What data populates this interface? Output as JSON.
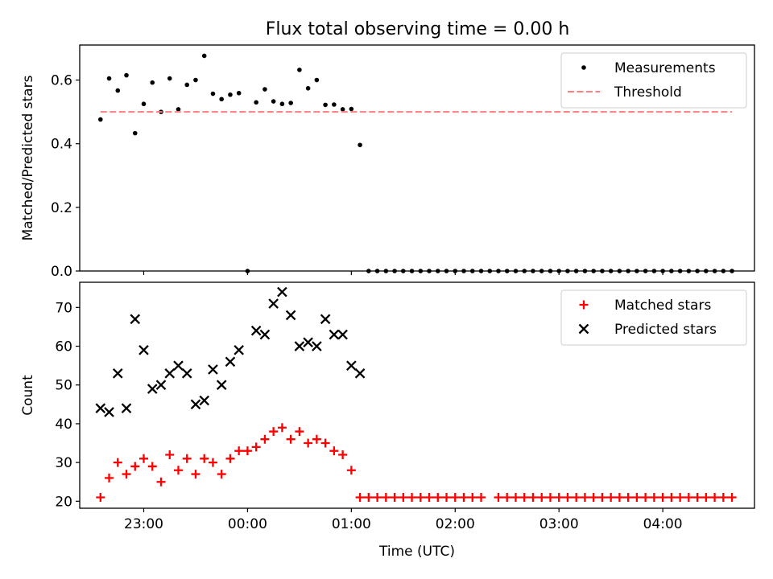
{
  "figure": {
    "title": "Flux total observing time = 0.00 h"
  },
  "colors": {
    "measurements": "#000000",
    "threshold": "#ff7f7f",
    "matched": "#ff0000",
    "predicted": "#000000"
  },
  "chart_data": [
    {
      "type": "scatter",
      "panel": "top",
      "title": "Flux total observing time = 0.00 h",
      "xlabel": "",
      "ylabel": "Matched/Predicted stars",
      "xlim": [
        "22:23",
        "04:53"
      ],
      "ylim": [
        0,
        0.71
      ],
      "yticks": [
        0.0,
        0.2,
        0.4,
        0.6
      ],
      "ytick_labels": [
        "0.0",
        "0.2",
        "0.4",
        "0.6"
      ],
      "xticks": [
        "23:00",
        "00:00",
        "01:00",
        "02:00",
        "03:00",
        "04:00"
      ],
      "legend": "top-right",
      "series": [
        {
          "name": "Measurements",
          "marker": "dot",
          "x": [
            "22:35",
            "22:40",
            "22:45",
            "22:50",
            "22:55",
            "23:00",
            "23:05",
            "23:10",
            "23:15",
            "23:20",
            "23:25",
            "23:30",
            "23:35",
            "23:40",
            "23:45",
            "23:50",
            "23:55",
            "00:00",
            "00:05",
            "00:10",
            "00:15",
            "00:20",
            "00:25",
            "00:30",
            "00:35",
            "00:40",
            "00:45",
            "00:50",
            "00:55",
            "01:00",
            "01:05",
            "01:10",
            "01:15",
            "01:20",
            "01:25",
            "01:30",
            "01:35",
            "01:40",
            "01:45",
            "01:50",
            "01:55",
            "02:00",
            "02:05",
            "02:10",
            "02:15",
            "02:20",
            "02:25",
            "02:30",
            "02:35",
            "02:40",
            "02:45",
            "02:50",
            "02:55",
            "03:00",
            "03:05",
            "03:10",
            "03:15",
            "03:20",
            "03:25",
            "03:30",
            "03:35",
            "03:40",
            "03:45",
            "03:50",
            "03:55",
            "04:00",
            "04:05",
            "04:10",
            "04:15",
            "04:20",
            "04:25",
            "04:30",
            "04:35",
            "04:40"
          ],
          "y": [
            0.476,
            0.605,
            0.567,
            0.615,
            0.433,
            0.525,
            0.592,
            0.5,
            0.605,
            0.508,
            0.585,
            0.6,
            0.676,
            0.557,
            0.54,
            0.554,
            0.559,
            0,
            0.53,
            0.571,
            0.533,
            0.525,
            0.528,
            0.632,
            0.574,
            0.6,
            0.522,
            0.523,
            0.508,
            0.509,
            0.396,
            0,
            0,
            0,
            0,
            0,
            0,
            0,
            0,
            0,
            0,
            0,
            0,
            0,
            0,
            0,
            0,
            0,
            0,
            0,
            0,
            0,
            0,
            0,
            0,
            0,
            0,
            0,
            0,
            0,
            0,
            0,
            0,
            0,
            0,
            0,
            0,
            0,
            0,
            0,
            0,
            0,
            0,
            0
          ]
        },
        {
          "name": "Threshold",
          "style": "dashed",
          "x": [
            "22:35",
            "04:40"
          ],
          "y": [
            0.5,
            0.5
          ]
        }
      ]
    },
    {
      "type": "scatter",
      "panel": "bottom",
      "xlabel": "Time (UTC)",
      "ylabel": "Count",
      "xlim": [
        "22:23",
        "04:53"
      ],
      "ylim": [
        18.2,
        76.5
      ],
      "yticks": [
        20,
        30,
        40,
        50,
        60,
        70
      ],
      "ytick_labels": [
        "20",
        "30",
        "40",
        "50",
        "60",
        "70"
      ],
      "xticks": [
        "23:00",
        "00:00",
        "01:00",
        "02:00",
        "03:00",
        "04:00"
      ],
      "xtick_labels": [
        "23:00",
        "00:00",
        "01:00",
        "02:00",
        "03:00",
        "04:00"
      ],
      "legend": "top-right",
      "series": [
        {
          "name": "Matched stars",
          "marker": "plus",
          "x": [
            "22:35",
            "22:40",
            "22:45",
            "22:50",
            "22:55",
            "23:00",
            "23:05",
            "23:10",
            "23:15",
            "23:20",
            "23:25",
            "23:30",
            "23:35",
            "23:40",
            "23:45",
            "23:50",
            "23:55",
            "00:00",
            "00:05",
            "00:10",
            "00:15",
            "00:20",
            "00:25",
            "00:30",
            "00:35",
            "00:40",
            "00:45",
            "00:50",
            "00:55",
            "01:00",
            "01:05",
            "01:10",
            "01:15",
            "01:20",
            "01:25",
            "01:30",
            "01:35",
            "01:40",
            "01:45",
            "01:50",
            "01:55",
            "02:00",
            "02:05",
            "02:10",
            "02:15",
            "02:25",
            "02:30",
            "02:35",
            "02:40",
            "02:45",
            "02:50",
            "02:55",
            "03:00",
            "03:05",
            "03:10",
            "03:15",
            "03:20",
            "03:25",
            "03:30",
            "03:35",
            "03:40",
            "03:45",
            "03:50",
            "03:55",
            "04:00",
            "04:05",
            "04:10",
            "04:15",
            "04:20",
            "04:25",
            "04:30",
            "04:35",
            "04:40"
          ],
          "y": [
            21,
            26,
            30,
            27,
            29,
            31,
            29,
            25,
            32,
            28,
            31,
            27,
            31,
            30,
            27,
            31,
            33,
            33,
            34,
            36,
            38,
            39,
            36,
            38,
            35,
            36,
            35,
            33,
            32,
            28,
            21,
            21,
            21,
            21,
            21,
            21,
            21,
            21,
            21,
            21,
            21,
            21,
            21,
            21,
            21,
            21,
            21,
            21,
            21,
            21,
            21,
            21,
            21,
            21,
            21,
            21,
            21,
            21,
            21,
            21,
            21,
            21,
            21,
            21,
            21,
            21,
            21,
            21,
            21,
            21,
            21,
            21,
            21
          ]
        },
        {
          "name": "Predicted stars",
          "marker": "x",
          "x": [
            "22:35",
            "22:40",
            "22:45",
            "22:50",
            "22:55",
            "23:00",
            "23:05",
            "23:10",
            "23:15",
            "23:20",
            "23:25",
            "23:30",
            "23:35",
            "23:40",
            "23:45",
            "23:50",
            "23:55",
            "00:00",
            "00:05",
            "00:10",
            "00:15",
            "00:20",
            "00:25",
            "00:30",
            "00:35",
            "00:40",
            "00:45",
            "00:50",
            "00:55",
            "01:00",
            "01:05",
            "01:10"
          ],
          "y": [
            44,
            43,
            53,
            44,
            67,
            59,
            49,
            50,
            53,
            55,
            53,
            45,
            46,
            54,
            50,
            56,
            59,
            null,
            64,
            63,
            71,
            74,
            68,
            60,
            61,
            60,
            67,
            63,
            63,
            55,
            53,
            null
          ]
        }
      ]
    }
  ]
}
